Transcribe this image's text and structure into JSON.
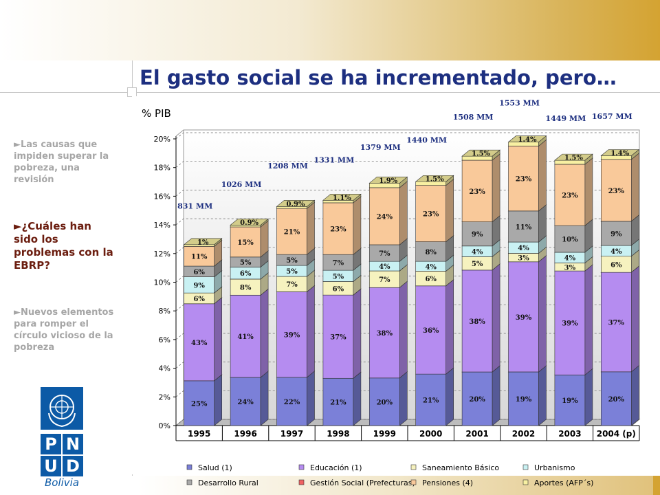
{
  "sidebar": {
    "items": [
      "►Las causas que impiden superar la pobreza, una revisión",
      "►¿Cuáles han sido los problemas con la EBRP?",
      "►Nuevos elementos para romper el círculo vicioso de la pobreza"
    ]
  },
  "logo": {
    "letters": [
      "P",
      "N",
      "U",
      "D"
    ],
    "caption": "Bolivia"
  },
  "chart_data": {
    "type": "bar",
    "stacked": true,
    "title": "El gasto social se ha incrementado, pero…",
    "ylabel": "% PIB",
    "categories": [
      "1995",
      "1996",
      "1997",
      "1998",
      "1999",
      "2000",
      "2001",
      "2002",
      "2003",
      "2004 (p)"
    ],
    "totals": [
      12.5,
      14.0,
      15.3,
      15.7,
      16.6,
      17.1,
      18.7,
      19.7,
      18.6,
      18.75
    ],
    "amounts": [
      "831 MM",
      "1026 MM",
      "1208 MM",
      "1331 MM",
      "1379 MM",
      "1440 MM",
      "1508 MM",
      "1553 MM",
      "1449 MM",
      "1657 MM"
    ],
    "ylim": [
      0,
      20
    ],
    "yticks": [
      {
        "value": 0,
        "label": "0%"
      },
      {
        "value": 2,
        "label": "2%"
      },
      {
        "value": 4,
        "label": "4%"
      },
      {
        "value": 6,
        "label": "6%"
      },
      {
        "value": 8,
        "label": "8%"
      },
      {
        "value": 10,
        "label": "10%"
      },
      {
        "value": 12,
        "label": "12%"
      },
      {
        "value": 14,
        "label": "14%"
      },
      {
        "value": 16,
        "label": "16%"
      },
      {
        "value": 18,
        "label": "18%"
      },
      {
        "value": 20,
        "label": "20%"
      }
    ],
    "grid": true,
    "series": [
      {
        "name": "Salud (1)",
        "color": "#7b80d8",
        "values": [
          25,
          24,
          22,
          21,
          20,
          21,
          20,
          19,
          19,
          20
        ],
        "value_labels": [
          "25%",
          "24%",
          "22%",
          "21%",
          "20%",
          "21%",
          "20%",
          "19%",
          "19%",
          "20%"
        ]
      },
      {
        "name": "Educación (1)",
        "color": "#b58cf0",
        "values": [
          43,
          41,
          39,
          37,
          38,
          36,
          38,
          39,
          39,
          37
        ],
        "value_labels": [
          "43%",
          "41%",
          "39%",
          "37%",
          "38%",
          "36%",
          "38%",
          "39%",
          "39%",
          "37%"
        ]
      },
      {
        "name": "Saneamiento Básico",
        "color": "#f6f2bf",
        "values": [
          6,
          8,
          7,
          6,
          7,
          6,
          5,
          3,
          3,
          6
        ],
        "value_labels": [
          "6%",
          "8%",
          "7%",
          "6%",
          "7%",
          "6%",
          "5%",
          "3%",
          "3%",
          "6%"
        ]
      },
      {
        "name": "Urbanismo",
        "color": "#c9f1f3",
        "values": [
          9,
          6,
          5,
          5,
          4,
          4,
          4,
          4,
          4,
          4
        ],
        "value_labels": [
          "9%",
          "6%",
          "5%",
          "5%",
          "4%",
          "4%",
          "4%",
          "4%",
          "4%",
          "4%"
        ]
      },
      {
        "name": "Desarrollo Rural",
        "color": "#a9a9a9",
        "values": [
          6,
          5,
          5,
          7,
          7,
          8,
          9,
          11,
          10,
          9
        ],
        "value_labels": [
          "6%",
          "5%",
          "5%",
          "7%",
          "7%",
          "8%",
          "9%",
          "11%",
          "10%",
          "9%"
        ]
      },
      {
        "name": "Gestión Social (Prefecturas)",
        "color": "#f06262",
        "values": [
          null,
          null,
          null,
          null,
          null,
          null,
          null,
          null,
          null,
          null
        ]
      },
      {
        "name": "Pensiones (4)",
        "color": "#f9c99a",
        "values": [
          11,
          15,
          21,
          23,
          24,
          23,
          23,
          23,
          23,
          23
        ],
        "value_labels": [
          "11%",
          "15%",
          "21%",
          "23%",
          "24%",
          "23%",
          "23%",
          "23%",
          "23%",
          "23%"
        ]
      },
      {
        "name": "Aportes (AFP´s)",
        "color": "#f8f0a2",
        "values": [
          1,
          0.9,
          0.9,
          1.1,
          1.9,
          1.5,
          1.5,
          1.4,
          1.5,
          1.4
        ],
        "value_labels": [
          "1%",
          "0.9%",
          "0.9%",
          "1.1%",
          "1.9%",
          "1.5%",
          "1.5%",
          "1.4%",
          "1.5%",
          "1.4%"
        ]
      }
    ]
  }
}
